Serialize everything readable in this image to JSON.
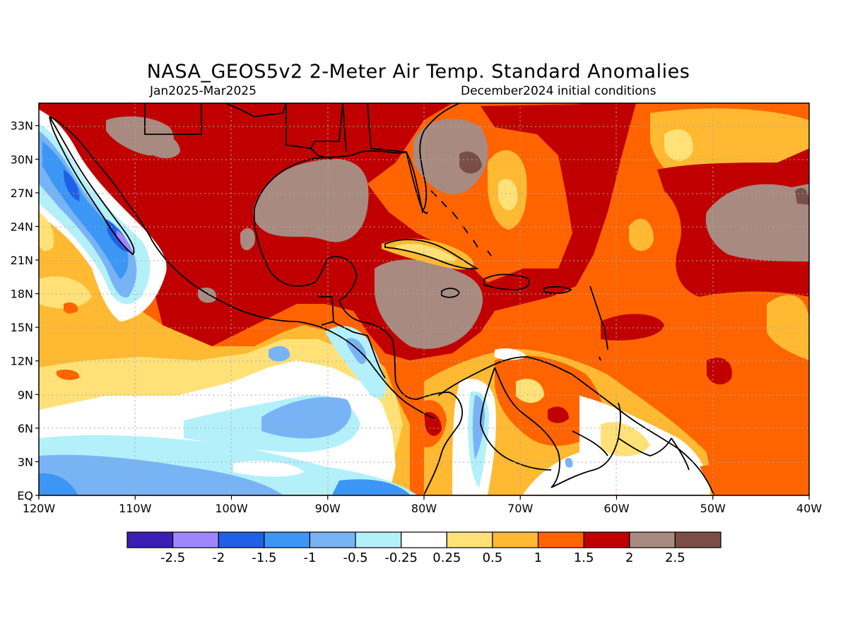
{
  "title": "NASA_GEOS5v2 2-Meter Air Temp. Standard Anomalies",
  "subtitle_left": "Jan2025-Mar2025",
  "subtitle_right": "December2024 initial conditions",
  "map": {
    "lat_labels": [
      "EQ",
      "3N",
      "6N",
      "9N",
      "12N",
      "15N",
      "18N",
      "21N",
      "24N",
      "27N",
      "30N",
      "33N"
    ],
    "lon_labels": [
      "120W",
      "110W",
      "100W",
      "90W",
      "80W",
      "70W",
      "60W",
      "50W",
      "40W"
    ]
  },
  "legend": {
    "colors": [
      "#3a1fb4",
      "#9e86ff",
      "#2060e6",
      "#3c96f5",
      "#78b4f5",
      "#b4f0fa",
      "#ffffff",
      "#ffe178",
      "#ffb932",
      "#ff6400",
      "#c00000",
      "#a88a80",
      "#7a4e46"
    ],
    "labels": [
      "-2.5",
      "-2",
      "-1.5",
      "-1",
      "-0.5",
      "-0.25",
      "0.25",
      "0.5",
      "1",
      "1.5",
      "2",
      "2.5"
    ]
  }
}
